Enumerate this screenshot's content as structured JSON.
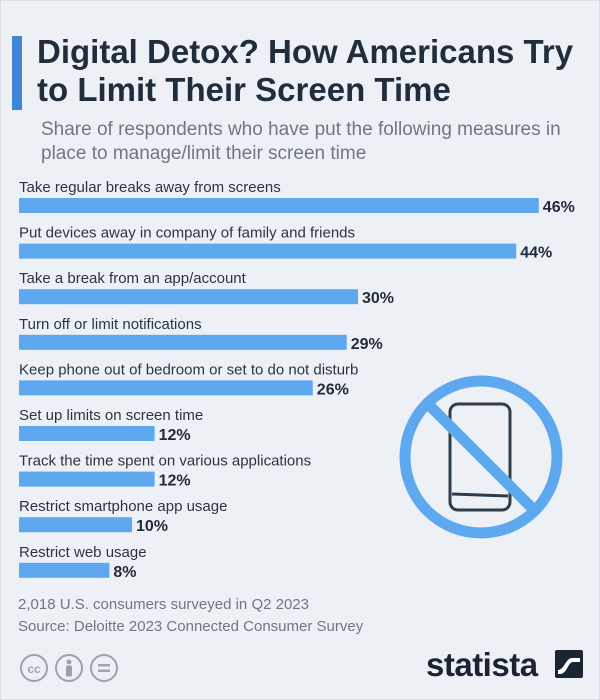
{
  "header": {
    "title": "Digital Detox? How Americans Try to Limit Their Screen Time",
    "subtitle": "Share of respondents who have put the following measures in place to manage/limit their screen time"
  },
  "chart_data": {
    "type": "bar",
    "orientation": "horizontal",
    "categories": [
      "Take regular breaks away from screens",
      "Put devices away in company of family and friends",
      "Take a break from an app/account",
      "Turn off or limit notifications",
      "Keep phone out of bedroom or set to do not disturb",
      "Set up limits on screen time",
      "Track the time spent on various applications",
      "Restrict smartphone app usage",
      "Restrict web usage"
    ],
    "values": [
      46,
      44,
      30,
      29,
      26,
      12,
      12,
      10,
      8
    ],
    "value_labels": [
      "46%",
      "44%",
      "30%",
      "29%",
      "26%",
      "12%",
      "12%",
      "10%",
      "8%"
    ],
    "unit": "%",
    "bar_color": "#5ea8ef",
    "grid": false,
    "legend": "none"
  },
  "footer": {
    "note": "2,018 U.S. consumers surveyed in Q2 2023",
    "source": "Source: Deloitte 2023 Connected Consumer Survey",
    "badges": [
      "cc-icon",
      "person-icon",
      "equals-icon"
    ]
  },
  "brand": {
    "name": "statista",
    "logo_icon": "statista-wave-icon"
  },
  "illustration": {
    "icon": "no-smartphone-icon",
    "color": "#5ea8ef"
  }
}
